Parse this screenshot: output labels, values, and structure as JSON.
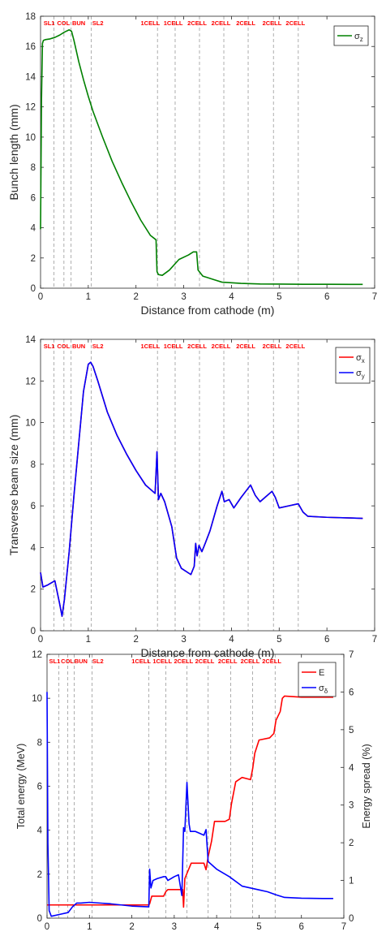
{
  "figure": {
    "panel_count": 3
  },
  "chart_data": [
    {
      "type": "line",
      "title": "",
      "xlabel": "Distance from cathode (m)",
      "ylabel": "Bunch length (mm)",
      "xlim": [
        0,
        7
      ],
      "ylim": [
        0,
        18
      ],
      "xticks": [
        "0",
        "1",
        "2",
        "3",
        "4",
        "5",
        "6",
        "7"
      ],
      "yticks": [
        "0",
        "2",
        "4",
        "6",
        "8",
        "10",
        "12",
        "14",
        "16",
        "18"
      ],
      "grid": false,
      "legend_position": "top-right",
      "markers": [
        {
          "x": 0.28,
          "label": "SL1"
        },
        {
          "x": 0.49,
          "label": "COL"
        },
        {
          "x": 0.64,
          "label": ""
        },
        {
          "x": 1.06,
          "label": "BUN"
        },
        {
          "x": 2.45,
          "label": "SL2"
        },
        {
          "x": 2.82,
          "label": "1CELL"
        },
        {
          "x": 3.33,
          "label": "1CELL"
        },
        {
          "x": 3.84,
          "label": "2CELL"
        },
        {
          "x": 4.35,
          "label": "2CELL"
        },
        {
          "x": 4.88,
          "label": "2CELL"
        },
        {
          "x": 5.4,
          "label": "2CELL"
        }
      ],
      "marker_label_row": [
        {
          "x": 0.18,
          "text": "SL1"
        },
        {
          "x": 0.48,
          "text": "COL"
        },
        {
          "x": 0.8,
          "text": "BUN"
        },
        {
          "x": 1.2,
          "text": "SL2"
        },
        {
          "x": 2.3,
          "text": "1CELL"
        },
        {
          "x": 2.78,
          "text": "1CELL"
        },
        {
          "x": 3.28,
          "text": "2CELL"
        },
        {
          "x": 3.78,
          "text": "2CELL"
        },
        {
          "x": 4.3,
          "text": "2CELL"
        },
        {
          "x": 4.85,
          "text": "2CELL"
        },
        {
          "x": 5.34,
          "text": "2CELL"
        }
      ],
      "series": [
        {
          "name": "σ",
          "subscript": "z",
          "color": "#008000",
          "x": [
            0,
            0.02,
            0.04,
            0.06,
            0.1,
            0.2,
            0.3,
            0.4,
            0.5,
            0.6,
            0.65,
            0.7,
            0.8,
            0.9,
            1.0,
            1.1,
            1.3,
            1.5,
            1.7,
            1.9,
            2.1,
            2.3,
            2.42,
            2.44,
            2.47,
            2.55,
            2.7,
            2.9,
            3.1,
            3.2,
            3.27,
            3.3,
            3.4,
            3.6,
            3.8,
            4.2,
            4.6,
            5.0,
            5.5,
            6.0,
            6.5,
            6.75
          ],
          "y": [
            3.9,
            12.5,
            16.2,
            16.4,
            16.45,
            16.5,
            16.6,
            16.75,
            16.95,
            17.1,
            17.0,
            16.4,
            15.0,
            13.8,
            12.7,
            11.7,
            10.0,
            8.4,
            7.0,
            5.7,
            4.5,
            3.5,
            3.2,
            1.1,
            0.9,
            0.85,
            1.2,
            1.9,
            2.2,
            2.4,
            2.4,
            1.2,
            0.8,
            0.6,
            0.4,
            0.32,
            0.28,
            0.27,
            0.26,
            0.26,
            0.25,
            0.25
          ]
        }
      ]
    },
    {
      "type": "line",
      "title": "",
      "xlabel": "Distance from cathode (m)",
      "ylabel": "Transverse beam size (mm)",
      "xlim": [
        0,
        7
      ],
      "ylim": [
        0,
        14
      ],
      "xticks": [
        "0",
        "1",
        "2",
        "3",
        "4",
        "5",
        "6",
        "7"
      ],
      "yticks": [
        "0",
        "2",
        "4",
        "6",
        "8",
        "10",
        "12",
        "14"
      ],
      "grid": false,
      "legend_position": "top-right",
      "markers": [
        {
          "x": 0.28,
          "label": "SL1"
        },
        {
          "x": 0.49,
          "label": "COL"
        },
        {
          "x": 0.64,
          "label": ""
        },
        {
          "x": 1.06,
          "label": "BUN"
        },
        {
          "x": 2.45,
          "label": "SL2"
        },
        {
          "x": 2.82,
          "label": "1CELL"
        },
        {
          "x": 3.33,
          "label": "1CELL"
        },
        {
          "x": 3.84,
          "label": "2CELL"
        },
        {
          "x": 4.35,
          "label": "2CELL"
        },
        {
          "x": 4.88,
          "label": "2CELL"
        },
        {
          "x": 5.4,
          "label": "2CELL"
        }
      ],
      "marker_label_row": [
        {
          "x": 0.18,
          "text": "SL1"
        },
        {
          "x": 0.48,
          "text": "COL"
        },
        {
          "x": 0.8,
          "text": "BUN"
        },
        {
          "x": 1.2,
          "text": "SL2"
        },
        {
          "x": 2.3,
          "text": "1CELL"
        },
        {
          "x": 2.78,
          "text": "1CELL"
        },
        {
          "x": 3.28,
          "text": "2CELL"
        },
        {
          "x": 3.78,
          "text": "2CELL"
        },
        {
          "x": 4.3,
          "text": "2CELL"
        },
        {
          "x": 4.85,
          "text": "2CELL"
        },
        {
          "x": 5.34,
          "text": "2CELL"
        }
      ],
      "series": [
        {
          "name": "σ",
          "subscript": "x",
          "color": "#ff0000",
          "x": [
            0,
            0.05,
            0.15,
            0.3,
            0.4,
            0.45,
            0.5,
            0.6,
            0.7,
            0.8,
            0.9,
            1.0,
            1.05,
            1.1,
            1.2,
            1.4,
            1.6,
            1.8,
            2.0,
            2.2,
            2.35,
            2.4,
            2.44,
            2.47,
            2.52,
            2.6,
            2.75,
            2.85,
            2.95,
            3.15,
            3.22,
            3.25,
            3.28,
            3.32,
            3.38,
            3.45,
            3.55,
            3.7,
            3.8,
            3.85,
            3.95,
            4.05,
            4.2,
            4.3,
            4.4,
            4.5,
            4.6,
            4.7,
            4.85,
            4.92,
            5.0,
            5.2,
            5.4,
            5.5,
            5.6,
            6.0,
            6.5,
            6.75
          ],
          "y": [
            2.8,
            2.1,
            2.2,
            2.4,
            1.3,
            0.7,
            1.5,
            3.8,
            6.5,
            9.0,
            11.5,
            12.8,
            12.9,
            12.7,
            12.0,
            10.5,
            9.4,
            8.5,
            7.7,
            7.0,
            6.7,
            6.6,
            8.6,
            6.3,
            6.6,
            6.2,
            5.0,
            3.5,
            3.0,
            2.7,
            3.1,
            4.2,
            3.6,
            4.1,
            3.8,
            4.2,
            4.8,
            6.0,
            6.7,
            6.2,
            6.3,
            5.9,
            6.4,
            6.7,
            7.0,
            6.5,
            6.2,
            6.4,
            6.7,
            6.4,
            5.9,
            6.0,
            6.1,
            5.7,
            5.5,
            5.45,
            5.42,
            5.4
          ]
        },
        {
          "name": "σ",
          "subscript": "y",
          "color": "#0000ff",
          "x": [
            0,
            0.05,
            0.15,
            0.3,
            0.4,
            0.45,
            0.5,
            0.6,
            0.7,
            0.8,
            0.9,
            1.0,
            1.05,
            1.1,
            1.2,
            1.4,
            1.6,
            1.8,
            2.0,
            2.2,
            2.35,
            2.4,
            2.44,
            2.47,
            2.52,
            2.6,
            2.75,
            2.85,
            2.95,
            3.15,
            3.22,
            3.25,
            3.28,
            3.32,
            3.38,
            3.45,
            3.55,
            3.7,
            3.8,
            3.85,
            3.95,
            4.05,
            4.2,
            4.3,
            4.4,
            4.5,
            4.6,
            4.7,
            4.85,
            4.92,
            5.0,
            5.2,
            5.4,
            5.5,
            5.6,
            6.0,
            6.5,
            6.75
          ],
          "y": [
            2.8,
            2.1,
            2.2,
            2.4,
            1.3,
            0.7,
            1.5,
            3.8,
            6.5,
            9.0,
            11.5,
            12.8,
            12.9,
            12.7,
            12.0,
            10.5,
            9.4,
            8.5,
            7.7,
            7.0,
            6.7,
            6.6,
            8.6,
            6.3,
            6.6,
            6.2,
            5.0,
            3.5,
            3.0,
            2.7,
            3.1,
            4.2,
            3.6,
            4.1,
            3.8,
            4.2,
            4.8,
            6.0,
            6.7,
            6.2,
            6.3,
            5.9,
            6.4,
            6.7,
            7.0,
            6.5,
            6.2,
            6.4,
            6.7,
            6.4,
            5.9,
            6.0,
            6.1,
            5.7,
            5.5,
            5.45,
            5.42,
            5.4
          ]
        }
      ]
    },
    {
      "type": "line",
      "title": "",
      "xlabel": "Distance from cathode (m)",
      "ylabel": "Total energy (MeV)",
      "y2label": "Energy spread (%)",
      "xlim": [
        0,
        7
      ],
      "ylim": [
        0,
        12
      ],
      "y2lim": [
        0,
        7
      ],
      "xticks": [
        "0",
        "1",
        "2",
        "3",
        "4",
        "5",
        "6",
        "7"
      ],
      "yticks": [
        "0",
        "2",
        "4",
        "6",
        "8",
        "10",
        "12"
      ],
      "y2ticks": [
        "0",
        "1",
        "2",
        "3",
        "4",
        "5",
        "6",
        "7"
      ],
      "grid": false,
      "legend_position": "top-right",
      "markers": [
        {
          "x": 0.28,
          "label": "SL1"
        },
        {
          "x": 0.49,
          "label": "COL"
        },
        {
          "x": 0.64,
          "label": ""
        },
        {
          "x": 1.06,
          "label": "BUN"
        },
        {
          "x": 2.4,
          "label": "SL2"
        },
        {
          "x": 2.8,
          "label": "1CELL"
        },
        {
          "x": 3.3,
          "label": "1CELL"
        },
        {
          "x": 3.8,
          "label": "2CELL"
        },
        {
          "x": 4.33,
          "label": "2CELL"
        },
        {
          "x": 4.85,
          "label": "2CELL"
        },
        {
          "x": 5.38,
          "label": "2CELL"
        }
      ],
      "marker_label_row": [
        {
          "x": 0.18,
          "text": "SL1"
        },
        {
          "x": 0.48,
          "text": "COL"
        },
        {
          "x": 0.8,
          "text": "BUN"
        },
        {
          "x": 1.2,
          "text": "SL2"
        },
        {
          "x": 2.22,
          "text": "1CELL"
        },
        {
          "x": 2.72,
          "text": "1CELL"
        },
        {
          "x": 3.22,
          "text": "2CELL"
        },
        {
          "x": 3.72,
          "text": "2CELL"
        },
        {
          "x": 4.26,
          "text": "2CELL"
        },
        {
          "x": 4.79,
          "text": "2CELL"
        },
        {
          "x": 5.3,
          "text": "2CELL"
        }
      ],
      "series": [
        {
          "name": "E",
          "subscript": "",
          "color": "#ff0000",
          "axis": "left",
          "x": [
            0,
            0.05,
            0.1,
            1.0,
            2.4,
            2.42,
            2.47,
            2.75,
            2.8,
            2.85,
            3.2,
            3.22,
            3.25,
            3.4,
            3.7,
            3.75,
            3.8,
            3.88,
            3.95,
            4.2,
            4.3,
            4.35,
            4.45,
            4.6,
            4.8,
            4.85,
            4.9,
            5.0,
            5.25,
            5.35,
            5.4,
            5.5,
            5.55,
            5.6,
            6.0,
            6.5,
            6.75
          ],
          "y": [
            0.6,
            0.6,
            0.6,
            0.6,
            0.6,
            0.65,
            1.0,
            1.0,
            1.2,
            1.3,
            1.3,
            0.5,
            1.8,
            2.5,
            2.5,
            2.2,
            2.8,
            3.5,
            4.4,
            4.4,
            4.5,
            5.2,
            6.2,
            6.4,
            6.3,
            6.8,
            7.5,
            8.1,
            8.2,
            8.4,
            9.0,
            9.4,
            10.0,
            10.1,
            10.05,
            10.05,
            10.05
          ]
        },
        {
          "name": "σ",
          "subscript": "δ",
          "color": "#0000ff",
          "axis": "right",
          "x": [
            0,
            0.02,
            0.05,
            0.1,
            0.3,
            0.5,
            0.6,
            0.7,
            0.8,
            1.0,
            1.5,
            2.0,
            2.4,
            2.42,
            2.45,
            2.5,
            2.6,
            2.75,
            2.8,
            2.85,
            3.0,
            3.1,
            3.18,
            3.22,
            3.25,
            3.3,
            3.35,
            3.38,
            3.5,
            3.6,
            3.7,
            3.75,
            3.8,
            4.0,
            4.3,
            4.6,
            5.0,
            5.2,
            5.4,
            5.6,
            6.0,
            6.5,
            6.75
          ],
          "y": [
            6.0,
            2.0,
            0.2,
            0.05,
            0.1,
            0.15,
            0.3,
            0.4,
            0.4,
            0.42,
            0.38,
            0.32,
            0.3,
            1.3,
            0.8,
            1.0,
            1.05,
            1.1,
            1.1,
            1.0,
            1.1,
            1.15,
            0.6,
            2.4,
            2.3,
            3.6,
            2.5,
            2.3,
            2.3,
            2.25,
            2.2,
            2.35,
            1.5,
            1.3,
            1.1,
            0.85,
            0.75,
            0.7,
            0.62,
            0.55,
            0.53,
            0.52,
            0.52
          ]
        }
      ]
    }
  ]
}
